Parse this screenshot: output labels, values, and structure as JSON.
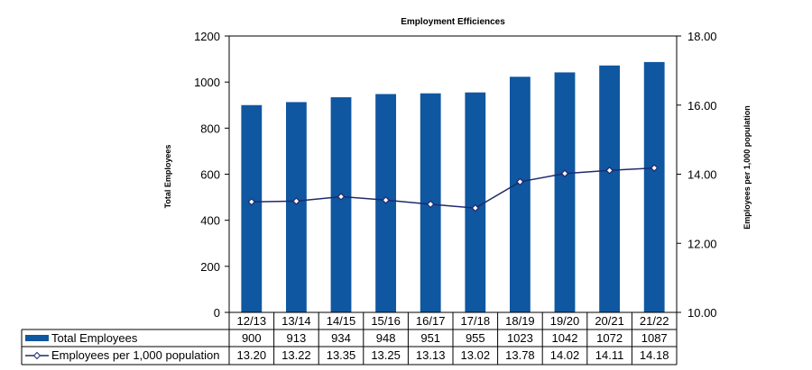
{
  "chart_data": {
    "type": "bar",
    "title": "Employment Efficiences",
    "categories": [
      "12/13",
      "13/14",
      "14/15",
      "15/16",
      "16/17",
      "17/18",
      "18/19",
      "19/20",
      "20/21",
      "21/22"
    ],
    "series": [
      {
        "name": "Total Employees",
        "type": "bar",
        "axis": "left",
        "color": "#0f57a0",
        "values": [
          900,
          913,
          934,
          948,
          951,
          955,
          1023,
          1042,
          1072,
          1087
        ],
        "labels": [
          "900",
          "913",
          "934",
          "948",
          "951",
          "955",
          "1023",
          "1042",
          "1072",
          "1087"
        ]
      },
      {
        "name": "Employees per 1,000 population",
        "type": "line",
        "axis": "right",
        "color": "#1f2a6e",
        "marker": "diamond",
        "values": [
          13.2,
          13.22,
          13.35,
          13.25,
          13.13,
          13.02,
          13.78,
          14.02,
          14.11,
          14.18
        ],
        "labels": [
          "13.20",
          "13.22",
          "13.35",
          "13.25",
          "13.13",
          "13.02",
          "13.78",
          "14.02",
          "14.11",
          "14.18"
        ]
      }
    ],
    "ylabel": "Total Employees",
    "ylim": [
      0,
      1200
    ],
    "yticks": [
      "0",
      "200",
      "400",
      "600",
      "800",
      "1000",
      "1200"
    ],
    "y2label": "Employees per 1,000 population",
    "y2lim": [
      10,
      18
    ],
    "y2ticks": [
      "10.00",
      "12.00",
      "14.00",
      "16.00",
      "18.00"
    ],
    "grid": false,
    "legend": "data-table"
  }
}
